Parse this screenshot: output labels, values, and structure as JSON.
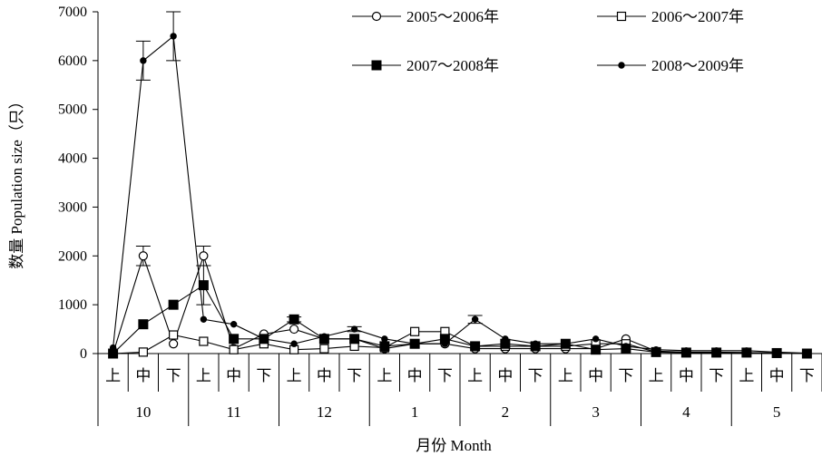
{
  "chart_data": {
    "type": "line",
    "title": "",
    "xlabel": "月份 Month",
    "ylabel": "数量 Population size（只）",
    "ylim": [
      0,
      7000
    ],
    "y_ticks": [
      0,
      1000,
      2000,
      3000,
      4000,
      5000,
      6000,
      7000
    ],
    "x_sublabels": [
      "上",
      "中",
      "下",
      "上",
      "中",
      "下",
      "上",
      "中",
      "下",
      "上",
      "中",
      "下",
      "上",
      "中",
      "下",
      "上",
      "中",
      "下",
      "上",
      "中",
      "下",
      "上",
      "中",
      "下"
    ],
    "months": [
      "10",
      "11",
      "12",
      "1",
      "2",
      "3",
      "4",
      "5"
    ],
    "legend_position": "top-right",
    "series": [
      {
        "name": "2005～2006年",
        "marker": "open-circle",
        "values": [
          0,
          2000,
          200,
          2000,
          100,
          400,
          500,
          300,
          300,
          100,
          200,
          200,
          100,
          100,
          100,
          100,
          100,
          300,
          50,
          30,
          30,
          20,
          10,
          0
        ],
        "errors": [
          0,
          200,
          0,
          200,
          0,
          0,
          0,
          0,
          0,
          0,
          0,
          0,
          0,
          0,
          0,
          0,
          0,
          0,
          0,
          0,
          0,
          0,
          0,
          0
        ]
      },
      {
        "name": "2006～2007年",
        "marker": "open-square",
        "values": [
          0,
          30,
          380,
          250,
          80,
          200,
          80,
          100,
          150,
          120,
          450,
          450,
          150,
          150,
          150,
          150,
          200,
          200,
          30,
          20,
          20,
          20,
          10,
          0
        ],
        "errors": [
          0,
          0,
          0,
          0,
          0,
          0,
          0,
          0,
          0,
          0,
          0,
          0,
          0,
          0,
          0,
          0,
          0,
          0,
          0,
          0,
          0,
          0,
          0,
          0
        ]
      },
      {
        "name": "2007～2008年",
        "marker": "filled-square",
        "values": [
          0,
          600,
          1000,
          1400,
          300,
          300,
          700,
          300,
          300,
          150,
          200,
          300,
          150,
          200,
          150,
          200,
          80,
          100,
          30,
          20,
          20,
          20,
          10,
          0
        ],
        "errors": [
          0,
          0,
          0,
          400,
          0,
          0,
          50,
          0,
          0,
          0,
          0,
          0,
          0,
          0,
          0,
          0,
          0,
          0,
          0,
          0,
          0,
          0,
          0,
          0
        ]
      },
      {
        "name": "2008～2009年",
        "marker": "filled-dot",
        "values": [
          120,
          6000,
          6500,
          700,
          600,
          300,
          200,
          350,
          500,
          300,
          200,
          200,
          700,
          300,
          200,
          200,
          300,
          150,
          80,
          60,
          60,
          60,
          30,
          10
        ],
        "errors": [
          0,
          400,
          500,
          0,
          0,
          0,
          0,
          0,
          50,
          0,
          0,
          0,
          80,
          0,
          0,
          0,
          0,
          0,
          0,
          0,
          0,
          0,
          0,
          0
        ]
      }
    ]
  }
}
